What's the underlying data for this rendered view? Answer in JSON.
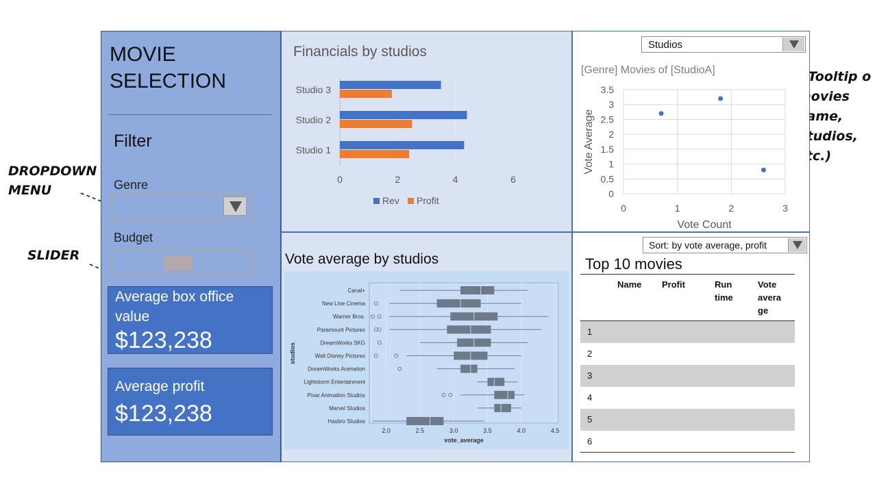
{
  "sidebar": {
    "title": "MOVIE\nSELECTION",
    "filter_heading": "Filter",
    "genre_label": "Genre",
    "budget_label": "Budget",
    "kpis": [
      {
        "label": "Average box office value",
        "value": "$123,238"
      },
      {
        "label": "Average profit",
        "value": "$123,238"
      }
    ]
  },
  "annotations": {
    "dropdown": "DROPDOWN\nMENU",
    "slider": "SLIDER",
    "tooltip": "( Tooltip o\nmovies\nname,\nStudios,\netc.)"
  },
  "financials": {
    "title": "Financials by studios",
    "chart_data": {
      "type": "bar",
      "orientation": "horizontal",
      "categories": [
        "Studio 3",
        "Studio 2",
        "Studio 1"
      ],
      "series": [
        {
          "name": "Rev",
          "values": [
            3.5,
            4.4,
            4.3
          ],
          "color": "#4472c4"
        },
        {
          "name": "Profit",
          "values": [
            1.8,
            2.5,
            2.4
          ],
          "color": "#ed7d31"
        }
      ],
      "xlim": [
        0,
        6
      ],
      "xticks": [
        "0",
        "2",
        "4",
        "6"
      ],
      "legend": "bottom"
    }
  },
  "scatter": {
    "selector_value": "Studios",
    "title": "[Genre] Movies of [StudioA]",
    "chart_data": {
      "type": "scatter",
      "points": [
        {
          "x": 0.7,
          "y": 2.7
        },
        {
          "x": 1.8,
          "y": 3.2
        },
        {
          "x": 2.6,
          "y": 0.8
        }
      ],
      "xlabel": "Vote Count",
      "ylabel": "Vote Average",
      "xlim": [
        0,
        3
      ],
      "ylim": [
        0,
        3.5
      ],
      "xticks": [
        "0",
        "1",
        "2",
        "3"
      ],
      "yticks": [
        "0",
        "0.5",
        "1",
        "1.5",
        "2",
        "2.5",
        "3",
        "3.5"
      ],
      "grid": true,
      "color": "#4472c4"
    }
  },
  "boxplot": {
    "title": "Vote average by studios",
    "chart_data": {
      "type": "box",
      "orientation": "horizontal",
      "xlabel": "vote_average",
      "ylabel": "studios",
      "xlim": [
        1.75,
        4.55
      ],
      "xticks": [
        "2.0",
        "2.5",
        "3.0",
        "3.5",
        "4.0",
        "4.5"
      ],
      "categories": [
        "Canal+",
        "New Line Cinema",
        "Warner Bros.",
        "Paramount Pictures",
        "DreamWorks SKG",
        "Walt Disney Pictures",
        "DreamWorks Animation",
        "Lightstorm Entertainment",
        "Pixar Animation Studios",
        "Marvel Studios",
        "Hasbro Studios"
      ],
      "boxes": [
        {
          "whisker_low": 2.2,
          "q1": 3.1,
          "median": 3.4,
          "q3": 3.6,
          "whisker_high": 4.1,
          "outliers": []
        },
        {
          "whisker_low": 2.05,
          "q1": 2.75,
          "median": 3.1,
          "q3": 3.4,
          "whisker_high": 4.0,
          "outliers": [
            1.85
          ]
        },
        {
          "whisker_low": 2.05,
          "q1": 2.95,
          "median": 3.3,
          "q3": 3.65,
          "whisker_high": 4.4,
          "outliers": [
            1.8,
            1.9
          ]
        },
        {
          "whisker_low": 2.05,
          "q1": 2.9,
          "median": 3.25,
          "q3": 3.55,
          "whisker_high": 4.3,
          "outliers": [
            1.85,
            1.9
          ]
        },
        {
          "whisker_low": 2.5,
          "q1": 3.05,
          "median": 3.3,
          "q3": 3.55,
          "whisker_high": 4.1,
          "outliers": [
            1.9
          ]
        },
        {
          "whisker_low": 2.3,
          "q1": 3.0,
          "median": 3.25,
          "q3": 3.5,
          "whisker_high": 4.0,
          "outliers": [
            1.85,
            2.15
          ]
        },
        {
          "whisker_low": 2.75,
          "q1": 3.1,
          "median": 3.25,
          "q3": 3.35,
          "whisker_high": 3.9,
          "outliers": [
            2.2
          ]
        },
        {
          "whisker_low": 3.35,
          "q1": 3.5,
          "median": 3.6,
          "q3": 3.75,
          "whisker_high": 3.95,
          "outliers": []
        },
        {
          "whisker_low": 3.1,
          "q1": 3.6,
          "median": 3.8,
          "q3": 3.9,
          "whisker_high": 4.05,
          "outliers": [
            2.85,
            2.95
          ]
        },
        {
          "whisker_low": 3.35,
          "q1": 3.6,
          "median": 3.7,
          "q3": 3.85,
          "whisker_high": 4.0,
          "outliers": []
        },
        {
          "whisker_low": 1.8,
          "q1": 2.3,
          "median": 2.65,
          "q3": 2.85,
          "whisker_high": 3.45,
          "outliers": []
        }
      ],
      "grid": true,
      "color": "#6c7a89"
    }
  },
  "top_movies": {
    "sort_value": "Sort: by vote average, profit",
    "title": "Top 10 movies",
    "columns": [
      "Name",
      "Profit",
      "Run\ntime",
      "Vote\navera\nge"
    ],
    "rows": [
      "1",
      "2",
      "3",
      "4",
      "5",
      "6"
    ]
  }
}
